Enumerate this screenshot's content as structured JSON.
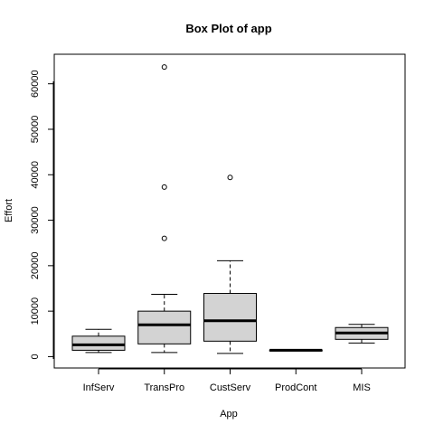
{
  "chart_data": {
    "type": "boxplot",
    "title": "Box Plot of app",
    "xlabel": "App",
    "ylabel": "Effort",
    "ylim": [
      -2500,
      66500
    ],
    "yticks": [
      0,
      10000,
      20000,
      30000,
      40000,
      50000,
      60000
    ],
    "ytick_labels": [
      "0",
      "10000",
      "20000",
      "30000",
      "40000",
      "50000",
      "60000"
    ],
    "grid": false,
    "box_fill": "#d3d3d3",
    "categories": [
      "InfServ",
      "TransPro",
      "CustServ",
      "ProdCont",
      "MIS"
    ],
    "boxes": [
      {
        "name": "InfServ",
        "whisker_low": 900,
        "q1": 1400,
        "median": 2600,
        "q3": 4500,
        "whisker_high": 6000,
        "outliers": []
      },
      {
        "name": "TransPro",
        "whisker_low": 900,
        "q1": 2800,
        "median": 7000,
        "q3": 10000,
        "whisker_high": 13700,
        "outliers": [
          26000,
          37300,
          63700
        ]
      },
      {
        "name": "CustServ",
        "whisker_low": 700,
        "q1": 3400,
        "median": 7900,
        "q3": 13900,
        "whisker_high": 21100,
        "outliers": [
          39400
        ]
      },
      {
        "name": "ProdCont",
        "whisker_low": 1300,
        "q1": 1350,
        "median": 1400,
        "q3": 1450,
        "whisker_high": 1500,
        "outliers": []
      },
      {
        "name": "MIS",
        "whisker_low": 3000,
        "q1": 3800,
        "median": 5200,
        "q3": 6400,
        "whisker_high": 7100,
        "outliers": []
      }
    ]
  }
}
